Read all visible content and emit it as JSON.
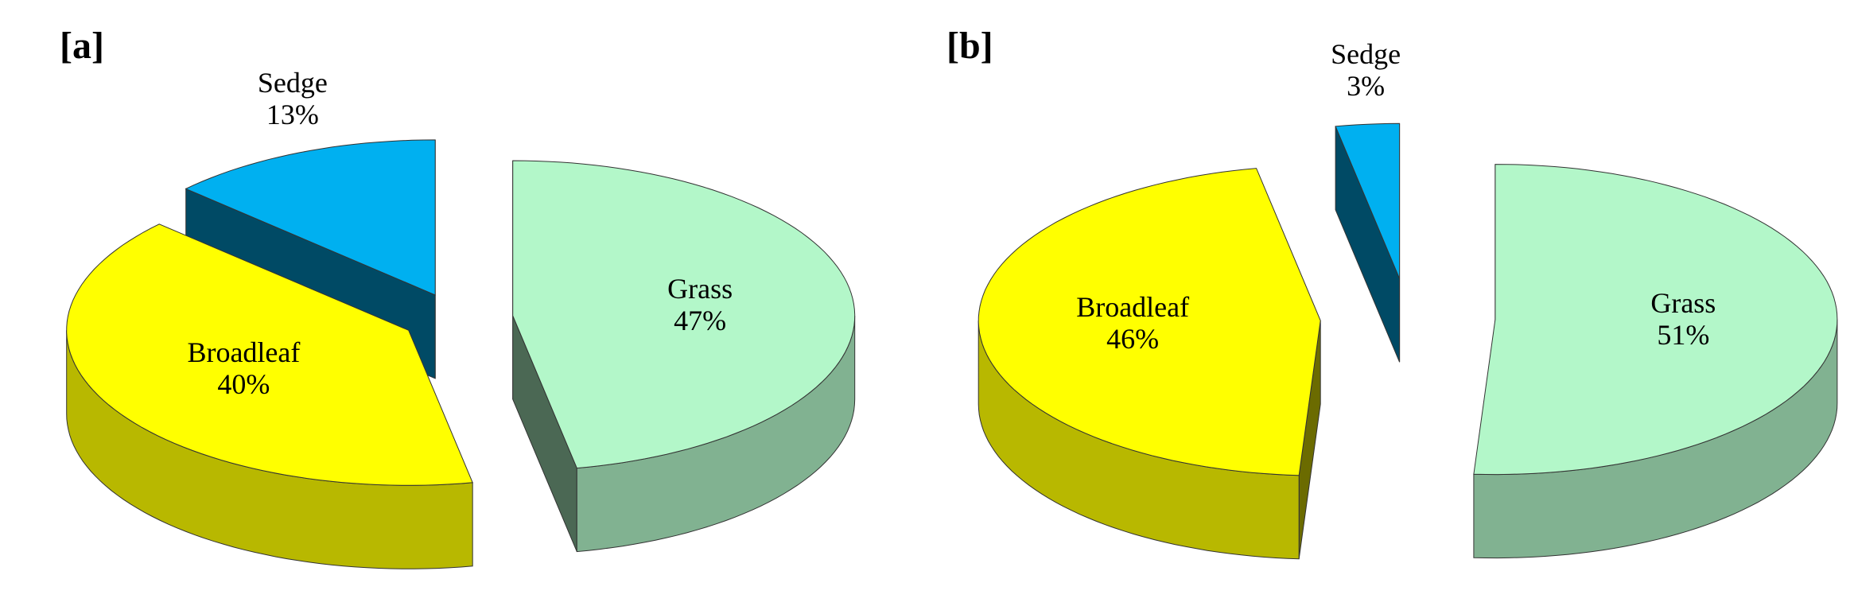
{
  "chart_data": [
    {
      "type": "pie",
      "title": "[a]",
      "categories": [
        "Grass",
        "Broadleaf",
        "Sedge"
      ],
      "values": [
        47,
        40,
        13
      ],
      "value_labels": [
        "47%",
        "40%",
        "13%"
      ],
      "colors": [
        "#b3f7c9",
        "#ffff00",
        "#00b0f0"
      ]
    },
    {
      "type": "pie",
      "title": "[b]",
      "categories": [
        "Grass",
        "Broadleaf",
        "Sedge"
      ],
      "values": [
        51,
        46,
        3
      ],
      "value_labels": [
        "51%",
        "46%",
        "3%"
      ],
      "colors": [
        "#b3f7c9",
        "#ffff00",
        "#00b0f0"
      ]
    }
  ]
}
